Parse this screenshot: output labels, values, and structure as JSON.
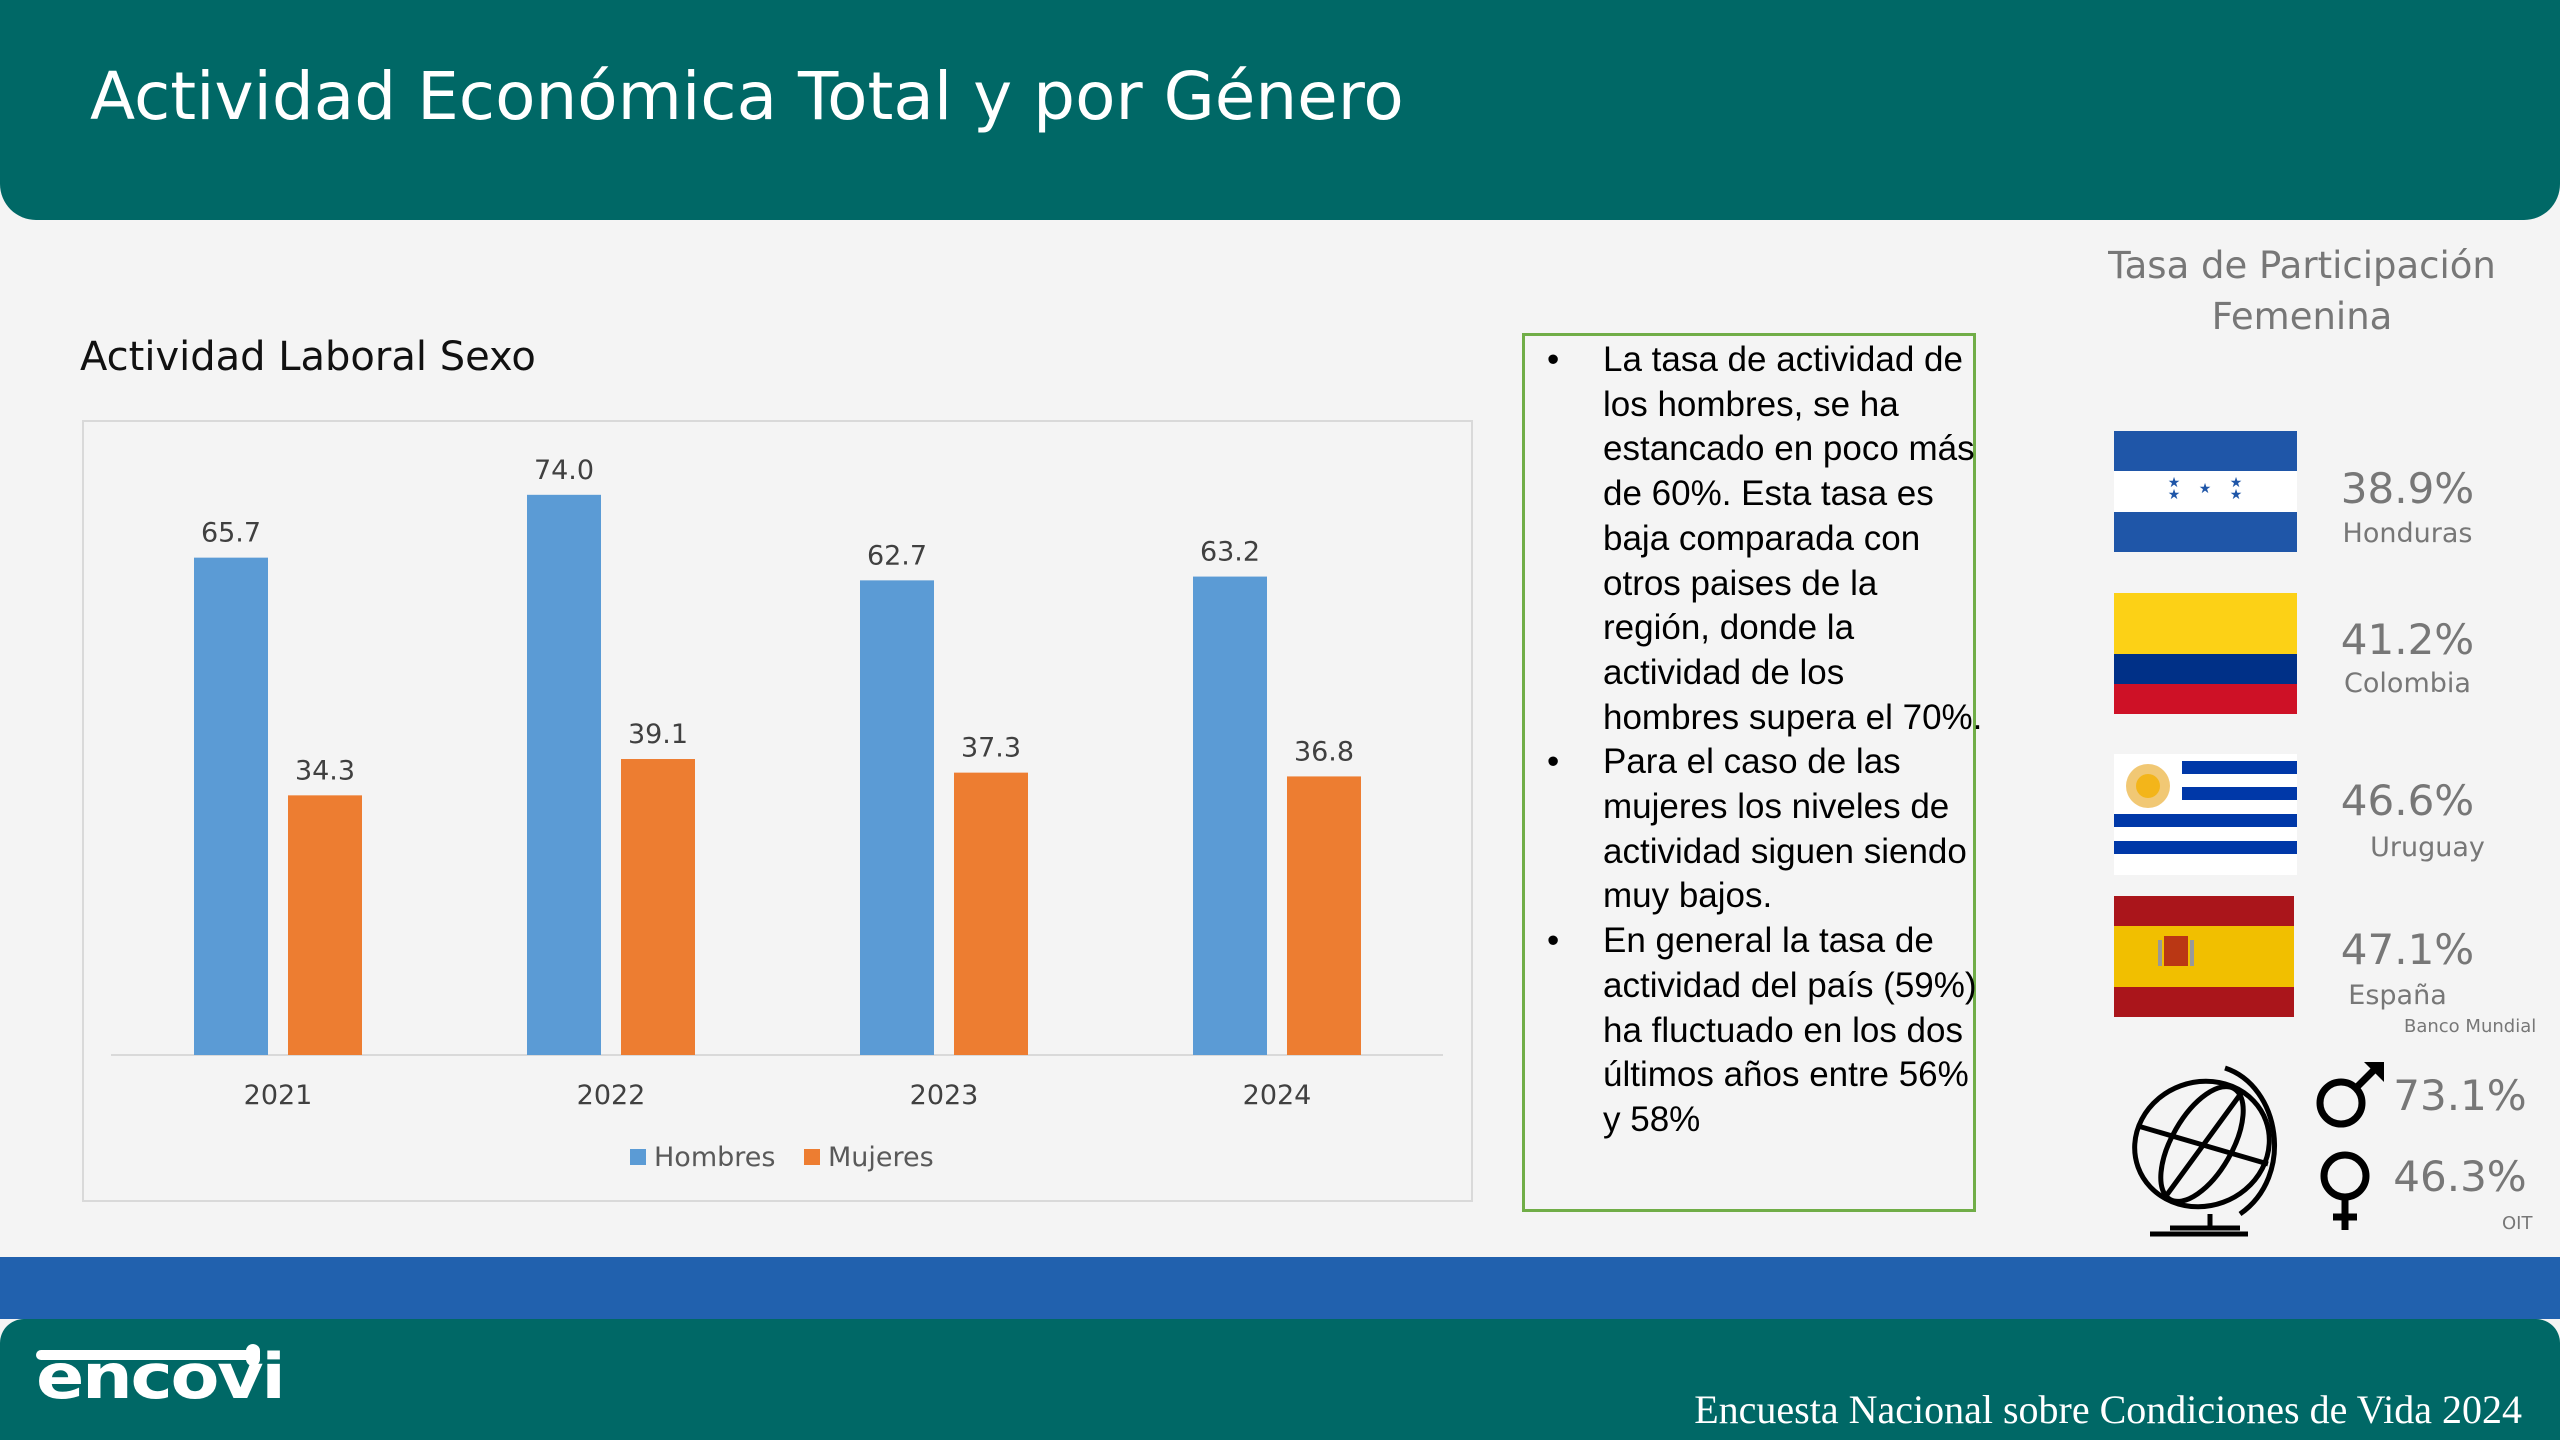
{
  "header": {
    "title": "Actividad Económica Total y por Género"
  },
  "chart_section": {
    "title": "Actividad Laboral Sexo"
  },
  "chart_data": {
    "type": "bar",
    "title": "Actividad Laboral Sexo",
    "categories": [
      "2021",
      "2022",
      "2023",
      "2024"
    ],
    "series": [
      {
        "name": "Hombres",
        "color": "#5b9bd5",
        "values": [
          65.7,
          74.0,
          62.7,
          63.2
        ]
      },
      {
        "name": "Mujeres",
        "color": "#ed7d31",
        "values": [
          34.3,
          39.1,
          37.3,
          36.8
        ]
      }
    ],
    "ylim": [
      0,
      80
    ],
    "grid": false,
    "legend": "bottom"
  },
  "notes": {
    "bullets": [
      "La tasa de actividad de los hombres, se ha estancado en poco más de 60%. Esta tasa es baja comparada con otros paises de la región, donde la actividad de los hombres supera el 70%.",
      "Para el caso de las mujeres los niveles de actividad siguen siendo muy bajos.",
      "En general la tasa de actividad del país (59%) ha fluctuado en los dos últimos años entre 56% y 58%"
    ]
  },
  "participation": {
    "title": "Tasa de Participación Femenina",
    "countries": [
      {
        "name": "Honduras",
        "value": "38.9%",
        "flag": "honduras-flag"
      },
      {
        "name": "Colombia",
        "value": "41.2%",
        "flag": "colombia-flag"
      },
      {
        "name": "Uruguay",
        "value": "46.6%",
        "flag": "uruguay-flag"
      },
      {
        "name": "España",
        "value": "47.1%",
        "flag": "spain-flag"
      }
    ],
    "source1": "Banco Mundial",
    "world": {
      "male": "73.1%",
      "female": "46.3%",
      "icon": "globe-icon"
    },
    "source2": "OIT"
  },
  "footer": {
    "logo": "encovi",
    "text": "Encuesta Nacional sobre Condiciones de Vida 2024"
  }
}
